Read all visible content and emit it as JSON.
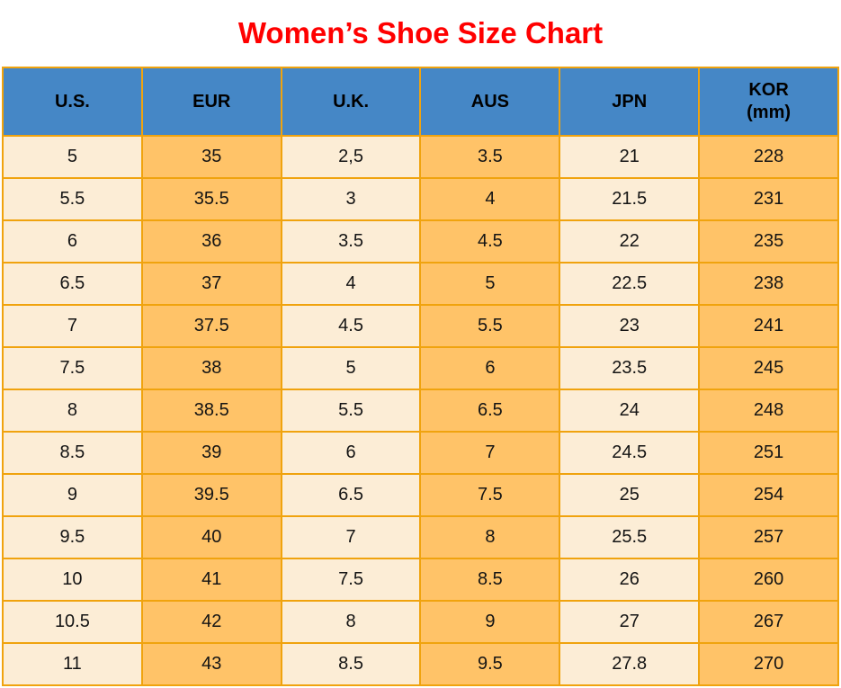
{
  "title": "Women’s Shoe Size Chart",
  "colors": {
    "title_text": "#ff0000",
    "header_bg": "#4587c6",
    "header_text": "#000000",
    "cell_border": "#f0a30e",
    "column_light": "#fcedd6",
    "column_orange": "#ffc368",
    "cell_text": "#141414",
    "page_bg": "#ffffff"
  },
  "table": {
    "headers": [
      {
        "label": "U.S."
      },
      {
        "label": "EUR"
      },
      {
        "label": "U.K."
      },
      {
        "label": "AUS"
      },
      {
        "label": "JPN"
      },
      {
        "label": "KOR",
        "sub": "(mm)"
      }
    ]
  },
  "chart_data": {
    "type": "table",
    "title": "Women’s Shoe Size Chart",
    "columns": [
      "U.S.",
      "EUR",
      "U.K.",
      "AUS",
      "JPN",
      "KOR (mm)"
    ],
    "rows": [
      [
        "5",
        "35",
        "2,5",
        "3.5",
        "21",
        "228"
      ],
      [
        "5.5",
        "35.5",
        "3",
        "4",
        "21.5",
        "231"
      ],
      [
        "6",
        "36",
        "3.5",
        "4.5",
        "22",
        "235"
      ],
      [
        "6.5",
        "37",
        "4",
        "5",
        "22.5",
        "238"
      ],
      [
        "7",
        "37.5",
        "4.5",
        "5.5",
        "23",
        "241"
      ],
      [
        "7.5",
        "38",
        "5",
        "6",
        "23.5",
        "245"
      ],
      [
        "8",
        "38.5",
        "5.5",
        "6.5",
        "24",
        "248"
      ],
      [
        "8.5",
        "39",
        "6",
        "7",
        "24.5",
        "251"
      ],
      [
        "9",
        "39.5",
        "6.5",
        "7.5",
        "25",
        "254"
      ],
      [
        "9.5",
        "40",
        "7",
        "8",
        "25.5",
        "257"
      ],
      [
        "10",
        "41",
        "7.5",
        "8.5",
        "26",
        "260"
      ],
      [
        "10.5",
        "42",
        "8",
        "9",
        "27",
        "267"
      ],
      [
        "11",
        "43",
        "8.5",
        "9.5",
        "27.8",
        "270"
      ]
    ]
  }
}
